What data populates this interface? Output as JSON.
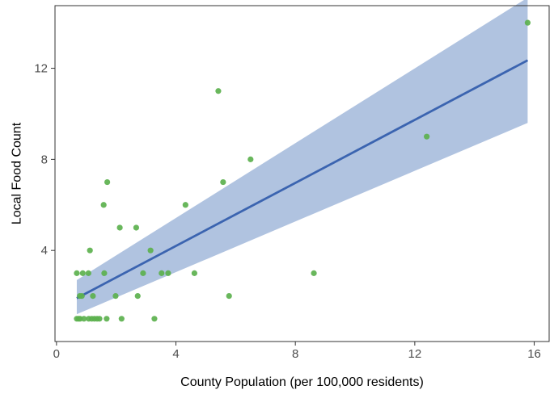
{
  "chart_data": {
    "type": "scatter",
    "title": "",
    "xlabel": "County Population (per 100,000 residents)",
    "ylabel": "Local Food Count",
    "xlim": [
      -0.05,
      16.5
    ],
    "ylim": [
      0,
      14.75
    ],
    "xticks": [
      0,
      4,
      8,
      12,
      16
    ],
    "yticks": [
      4,
      8,
      12
    ],
    "grid": false,
    "legend": "none",
    "points": [
      {
        "x": 0.68,
        "y": 1
      },
      {
        "x": 0.74,
        "y": 1
      },
      {
        "x": 0.79,
        "y": 1
      },
      {
        "x": 0.92,
        "y": 1
      },
      {
        "x": 1.08,
        "y": 1
      },
      {
        "x": 1.18,
        "y": 1
      },
      {
        "x": 1.27,
        "y": 1
      },
      {
        "x": 1.36,
        "y": 1
      },
      {
        "x": 1.44,
        "y": 1
      },
      {
        "x": 1.68,
        "y": 1
      },
      {
        "x": 2.18,
        "y": 1
      },
      {
        "x": 3.28,
        "y": 1
      },
      {
        "x": 0.78,
        "y": 2
      },
      {
        "x": 0.85,
        "y": 2
      },
      {
        "x": 1.22,
        "y": 2
      },
      {
        "x": 1.98,
        "y": 2
      },
      {
        "x": 2.72,
        "y": 2
      },
      {
        "x": 5.78,
        "y": 2
      },
      {
        "x": 0.68,
        "y": 3
      },
      {
        "x": 0.88,
        "y": 3
      },
      {
        "x": 1.07,
        "y": 3
      },
      {
        "x": 1.6,
        "y": 3
      },
      {
        "x": 2.9,
        "y": 3
      },
      {
        "x": 3.52,
        "y": 3
      },
      {
        "x": 3.74,
        "y": 3
      },
      {
        "x": 4.62,
        "y": 3
      },
      {
        "x": 8.62,
        "y": 3
      },
      {
        "x": 1.12,
        "y": 4
      },
      {
        "x": 3.15,
        "y": 4
      },
      {
        "x": 2.12,
        "y": 5
      },
      {
        "x": 2.67,
        "y": 5
      },
      {
        "x": 1.58,
        "y": 6
      },
      {
        "x": 4.32,
        "y": 6
      },
      {
        "x": 1.7,
        "y": 7
      },
      {
        "x": 5.58,
        "y": 7
      },
      {
        "x": 6.5,
        "y": 8
      },
      {
        "x": 12.4,
        "y": 9
      },
      {
        "x": 5.42,
        "y": 11
      },
      {
        "x": 15.78,
        "y": 14
      }
    ],
    "fit": {
      "method": "lm",
      "x": [
        0.68,
        15.78
      ],
      "y": [
        1.9,
        12.35
      ],
      "ci_lower": [
        1.2,
        9.6
      ],
      "ci_upper": [
        2.7,
        15.1
      ]
    },
    "colors": {
      "points": "#5cb14e",
      "line": "#3b64b0",
      "ribbon": "#b0c3e0",
      "panel_border": "#333333",
      "tick_text": "#4d4d4d"
    }
  }
}
